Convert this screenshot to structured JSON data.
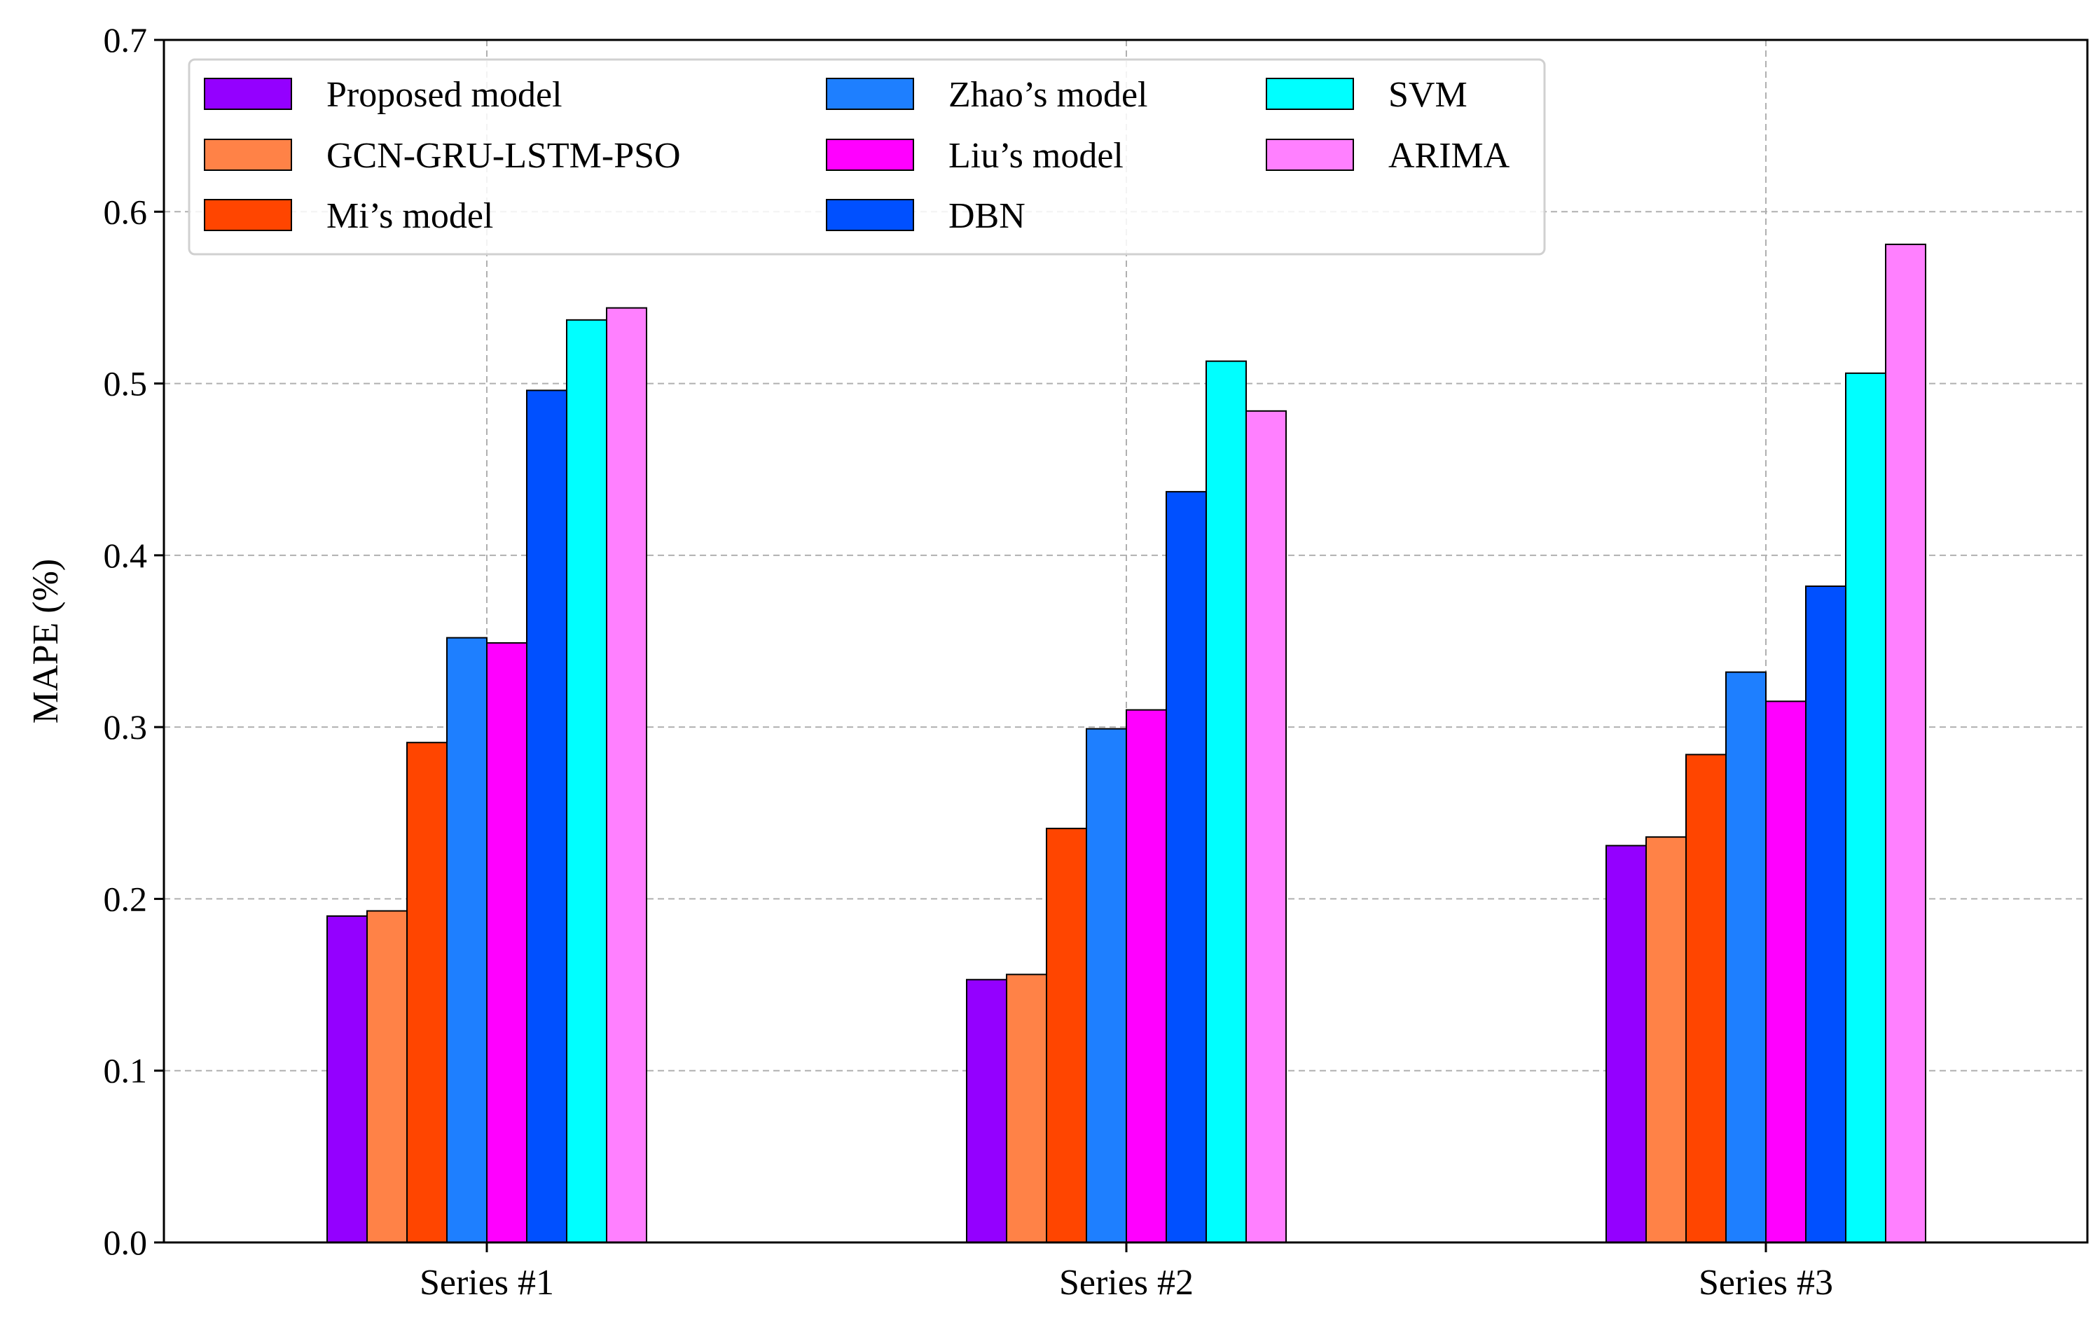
{
  "chart_data": {
    "type": "bar",
    "title": "",
    "xlabel": "",
    "ylabel": "MAPE (%)",
    "ylim": [
      0,
      0.7
    ],
    "yticks": [
      "0.0",
      "0.1",
      "0.2",
      "0.3",
      "0.4",
      "0.5",
      "0.6",
      "0.7"
    ],
    "categories": [
      "Series #1",
      "Series #2",
      "Series #3"
    ],
    "grid": true,
    "legend_position": "top-left",
    "series": [
      {
        "name": "Proposed model",
        "color": "#9400FF",
        "values": [
          0.19,
          0.153,
          0.231
        ]
      },
      {
        "name": "GCN-GRU-LSTM-PSO",
        "color": "#FF8247",
        "values": [
          0.193,
          0.156,
          0.236
        ]
      },
      {
        "name": "Mi’s model",
        "color": "#FF4500",
        "values": [
          0.291,
          0.241,
          0.284
        ]
      },
      {
        "name": "Zhao’s model",
        "color": "#1E7FFF",
        "values": [
          0.352,
          0.299,
          0.332
        ]
      },
      {
        "name": "Liu’s model",
        "color": "#FF00FF",
        "values": [
          0.349,
          0.31,
          0.315
        ]
      },
      {
        "name": "DBN",
        "color": "#0050FF",
        "values": [
          0.496,
          0.437,
          0.382
        ]
      },
      {
        "name": "SVM",
        "color": "#00FFFF",
        "values": [
          0.537,
          0.513,
          0.506
        ]
      },
      {
        "name": "ARIMA",
        "color": "#FF80FF",
        "values": [
          0.544,
          0.484,
          0.581
        ]
      }
    ]
  }
}
